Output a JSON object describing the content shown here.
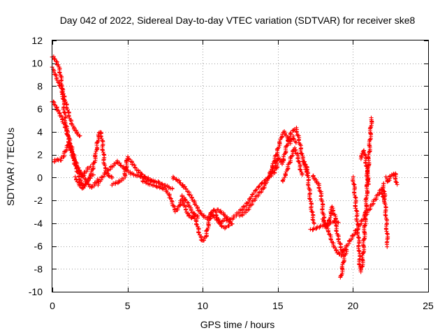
{
  "chart_data": {
    "type": "scatter",
    "title": "Day 042 of 2022, Sidereal Day-to-day VTEC variation (SDTVAR) for receiver ske8",
    "xlabel": "GPS time / hours",
    "ylabel": "SDTVAR / TECUs",
    "xlim": [
      0,
      25
    ],
    "ylim": [
      -10,
      12
    ],
    "x_ticks": [
      0,
      5,
      10,
      15,
      20,
      25
    ],
    "y_ticks": [
      -10,
      -8,
      -6,
      -4,
      -2,
      0,
      2,
      4,
      6,
      8,
      10,
      12
    ],
    "x_tick_labels": [
      "0",
      "5",
      "10",
      "15",
      "20",
      "25"
    ],
    "y_tick_labels": [
      "-10",
      "-8",
      "-6",
      "-4",
      "-2",
      "0",
      "2",
      "4",
      "6",
      "8",
      "10",
      "12"
    ],
    "grid": true,
    "marker": "+",
    "color": "#ff0000",
    "series": [
      {
        "name": "SDTVAR",
        "traces": [
          [
            [
              0.0,
              9.6
            ],
            [
              0.2,
              9.0
            ],
            [
              0.4,
              8.3
            ],
            [
              0.6,
              7.8
            ],
            [
              0.8,
              7.0
            ],
            [
              1.0,
              6.0
            ],
            [
              1.2,
              5.0
            ],
            [
              1.4,
              4.4
            ],
            [
              1.6,
              4.0
            ],
            [
              1.8,
              3.6
            ]
          ],
          [
            [
              0.0,
              10.6
            ],
            [
              0.2,
              10.3
            ],
            [
              0.4,
              9.8
            ],
            [
              0.5,
              9.3
            ],
            [
              0.6,
              8.5
            ],
            [
              0.7,
              7.2
            ],
            [
              0.8,
              5.8
            ],
            [
              0.9,
              4.6
            ],
            [
              1.0,
              3.8
            ],
            [
              1.2,
              2.6
            ],
            [
              1.4,
              1.8
            ],
            [
              1.6,
              1.0
            ],
            [
              1.8,
              0.4
            ],
            [
              2.0,
              0.1
            ],
            [
              2.2,
              0.5
            ],
            [
              2.5,
              1.0
            ]
          ],
          [
            [
              0.0,
              6.7
            ],
            [
              0.2,
              6.3
            ],
            [
              0.4,
              5.8
            ],
            [
              0.6,
              5.3
            ],
            [
              0.8,
              4.6
            ],
            [
              1.0,
              4.0
            ],
            [
              1.2,
              3.0
            ],
            [
              1.4,
              2.0
            ],
            [
              1.6,
              1.2
            ],
            [
              1.8,
              0.6
            ],
            [
              2.0,
              0.2
            ],
            [
              2.2,
              -0.2
            ],
            [
              2.4,
              -0.6
            ],
            [
              2.6,
              -0.9
            ],
            [
              2.8,
              -0.6
            ],
            [
              3.0,
              -0.2
            ]
          ],
          [
            [
              0.1,
              1.4
            ],
            [
              0.3,
              1.6
            ],
            [
              0.5,
              1.5
            ],
            [
              0.7,
              1.8
            ],
            [
              0.9,
              2.4
            ],
            [
              1.1,
              3.0
            ],
            [
              1.3,
              2.2
            ],
            [
              1.5,
              1.2
            ],
            [
              1.7,
              0.4
            ],
            [
              1.9,
              -0.4
            ],
            [
              2.1,
              -0.8
            ],
            [
              2.3,
              -0.4
            ],
            [
              2.5,
              0.0
            ],
            [
              2.7,
              0.3
            ]
          ],
          [
            [
              1.5,
              0.0
            ],
            [
              1.8,
              -0.6
            ],
            [
              2.0,
              -1.0
            ],
            [
              2.2,
              -0.6
            ],
            [
              2.4,
              -0.2
            ],
            [
              2.6,
              0.4
            ],
            [
              2.8,
              1.4
            ],
            [
              3.0,
              3.0
            ],
            [
              3.1,
              3.8
            ],
            [
              3.2,
              4.0
            ],
            [
              3.3,
              3.4
            ],
            [
              3.4,
              2.0
            ],
            [
              3.5,
              0.8
            ],
            [
              3.7,
              0.2
            ],
            [
              4.0,
              0.0
            ]
          ],
          [
            [
              3.0,
              -0.6
            ],
            [
              3.3,
              0.0
            ],
            [
              3.6,
              0.5
            ],
            [
              4.0,
              1.0
            ],
            [
              4.3,
              1.4
            ],
            [
              4.6,
              1.0
            ],
            [
              5.0,
              0.6
            ],
            [
              5.3,
              0.3
            ],
            [
              5.6,
              0.2
            ],
            [
              6.0,
              0.0
            ],
            [
              6.4,
              -0.2
            ],
            [
              6.8,
              -0.4
            ]
          ],
          [
            [
              4.0,
              -0.6
            ],
            [
              4.4,
              -0.4
            ],
            [
              4.8,
              0.0
            ],
            [
              5.0,
              1.8
            ],
            [
              5.3,
              1.3
            ],
            [
              5.6,
              0.7
            ],
            [
              6.0,
              0.2
            ],
            [
              6.5,
              -0.2
            ],
            [
              7.0,
              -0.4
            ],
            [
              7.5,
              -0.7
            ],
            [
              8.0,
              -1.0
            ]
          ],
          [
            [
              6.0,
              -0.3
            ],
            [
              6.5,
              -0.6
            ],
            [
              7.0,
              -0.8
            ],
            [
              7.5,
              -1.0
            ],
            [
              7.8,
              -1.6
            ],
            [
              8.0,
              -2.3
            ],
            [
              8.2,
              -3.0
            ],
            [
              8.4,
              -2.6
            ],
            [
              8.6,
              -2.0
            ],
            [
              8.8,
              -2.5
            ],
            [
              9.0,
              -3.2
            ],
            [
              9.3,
              -3.6
            ],
            [
              9.5,
              -3.2
            ],
            [
              9.7,
              -3.5
            ]
          ],
          [
            [
              8.0,
              0.0
            ],
            [
              8.3,
              -0.2
            ],
            [
              8.6,
              -0.6
            ],
            [
              8.9,
              -1.0
            ],
            [
              9.2,
              -1.6
            ],
            [
              9.5,
              -2.3
            ],
            [
              9.8,
              -3.0
            ],
            [
              10.0,
              -3.3
            ],
            [
              10.3,
              -3.6
            ],
            [
              10.6,
              -3.2
            ],
            [
              10.9,
              -3.6
            ],
            [
              11.2,
              -4.0
            ],
            [
              11.5,
              -3.6
            ],
            [
              11.8,
              -3.9
            ]
          ],
          [
            [
              8.6,
              -1.6
            ],
            [
              9.0,
              -2.2
            ],
            [
              9.3,
              -3.0
            ],
            [
              9.6,
              -4.0
            ],
            [
              9.8,
              -5.0
            ],
            [
              10.0,
              -5.6
            ],
            [
              10.2,
              -5.2
            ],
            [
              10.4,
              -4.0
            ],
            [
              10.6,
              -3.0
            ],
            [
              10.8,
              -2.8
            ],
            [
              11.0,
              -3.6
            ],
            [
              11.2,
              -4.2
            ],
            [
              11.5,
              -4.4
            ],
            [
              12.0,
              -4.0
            ]
          ],
          [
            [
              11.0,
              -2.8
            ],
            [
              11.4,
              -3.2
            ],
            [
              11.8,
              -3.8
            ],
            [
              12.2,
              -3.3
            ],
            [
              12.6,
              -2.8
            ],
            [
              13.0,
              -2.2
            ],
            [
              13.3,
              -1.5
            ],
            [
              13.6,
              -1.0
            ],
            [
              14.0,
              -0.4
            ],
            [
              14.4,
              0.0
            ],
            [
              14.8,
              0.5
            ],
            [
              15.0,
              1.2
            ]
          ],
          [
            [
              12.5,
              -3.4
            ],
            [
              13.0,
              -2.8
            ],
            [
              13.5,
              -1.8
            ],
            [
              14.0,
              -1.0
            ],
            [
              14.3,
              -0.2
            ],
            [
              14.6,
              0.8
            ],
            [
              14.9,
              2.0
            ],
            [
              15.2,
              3.4
            ],
            [
              15.4,
              4.0
            ],
            [
              15.6,
              3.6
            ],
            [
              15.8,
              3.0
            ],
            [
              16.0,
              3.6
            ],
            [
              16.2,
              3.0
            ]
          ],
          [
            [
              14.5,
              0.2
            ],
            [
              14.8,
              1.0
            ],
            [
              15.0,
              1.8
            ],
            [
              15.3,
              1.2
            ],
            [
              15.6,
              2.8
            ],
            [
              15.9,
              4.0
            ],
            [
              16.2,
              4.3
            ],
            [
              16.4,
              3.4
            ],
            [
              16.6,
              2.0
            ],
            [
              16.8,
              1.0
            ],
            [
              17.0,
              0.4
            ]
          ],
          [
            [
              15.3,
              -0.4
            ],
            [
              15.5,
              0.2
            ],
            [
              15.7,
              1.0
            ],
            [
              15.9,
              1.8
            ],
            [
              16.1,
              2.6
            ],
            [
              16.3,
              2.0
            ],
            [
              16.5,
              0.8
            ],
            [
              16.6,
              0.2
            ]
          ],
          [
            [
              16.7,
              1.4
            ],
            [
              16.9,
              1.0
            ],
            [
              17.0,
              0.0
            ],
            [
              17.1,
              -1.2
            ],
            [
              17.2,
              -2.4
            ],
            [
              17.3,
              -3.2
            ],
            [
              17.4,
              -4.0
            ]
          ],
          [
            [
              17.3,
              0.2
            ],
            [
              17.5,
              -0.2
            ],
            [
              17.7,
              -0.6
            ],
            [
              17.9,
              -1.6
            ],
            [
              18.0,
              -3.0
            ],
            [
              18.1,
              -4.0
            ],
            [
              18.2,
              -4.4
            ],
            [
              18.4,
              -4.0
            ],
            [
              18.6,
              -2.6
            ],
            [
              18.8,
              -3.4
            ],
            [
              19.0,
              -4.0
            ]
          ],
          [
            [
              18.0,
              -3.6
            ],
            [
              18.2,
              -4.2
            ],
            [
              18.4,
              -4.8
            ],
            [
              18.6,
              -5.6
            ],
            [
              18.8,
              -6.2
            ],
            [
              19.0,
              -6.6
            ],
            [
              19.2,
              -6.8
            ],
            [
              19.4,
              -6.2
            ]
          ],
          [
            [
              19.2,
              -8.8
            ],
            [
              19.4,
              -7.0
            ],
            [
              19.6,
              -6.3
            ]
          ],
          [
            [
              20.0,
              0.0
            ],
            [
              20.1,
              -1.0
            ],
            [
              20.2,
              -2.6
            ],
            [
              20.3,
              -4.0
            ],
            [
              20.4,
              -6.0
            ],
            [
              20.45,
              -7.6
            ],
            [
              20.5,
              -8.2
            ],
            [
              20.6,
              -7.8
            ],
            [
              20.7,
              -6.2
            ],
            [
              20.8,
              -4.0
            ],
            [
              20.9,
              -1.8
            ],
            [
              21.0,
              0.4
            ],
            [
              21.05,
              1.8
            ],
            [
              21.1,
              2.6
            ],
            [
              21.15,
              3.6
            ],
            [
              21.2,
              4.6
            ],
            [
              21.25,
              5.2
            ]
          ],
          [
            [
              20.5,
              1.6
            ],
            [
              20.6,
              2.0
            ],
            [
              20.7,
              2.4
            ],
            [
              20.8,
              2.0
            ],
            [
              20.9,
              1.0
            ],
            [
              21.0,
              -0.6
            ]
          ],
          [
            [
              22.0,
              -0.5
            ],
            [
              22.1,
              -1.6
            ],
            [
              22.15,
              -2.6
            ],
            [
              22.2,
              -3.4
            ],
            [
              22.25,
              -4.6
            ],
            [
              22.3,
              -6.0
            ]
          ],
          [
            [
              22.2,
              0.0
            ],
            [
              22.3,
              -0.4
            ],
            [
              22.4,
              -0.2
            ],
            [
              22.5,
              0.2
            ],
            [
              22.7,
              0.2
            ],
            [
              22.8,
              0.4
            ],
            [
              22.9,
              -0.6
            ]
          ],
          [
            [
              17.2,
              -4.6
            ],
            [
              18.8,
              -3.8
            ],
            [
              19.0,
              -5.2
            ],
            [
              19.3,
              -6.6
            ],
            [
              21.9,
              -1.0
            ],
            [
              22.05,
              -2.0
            ]
          ]
        ]
      }
    ]
  }
}
